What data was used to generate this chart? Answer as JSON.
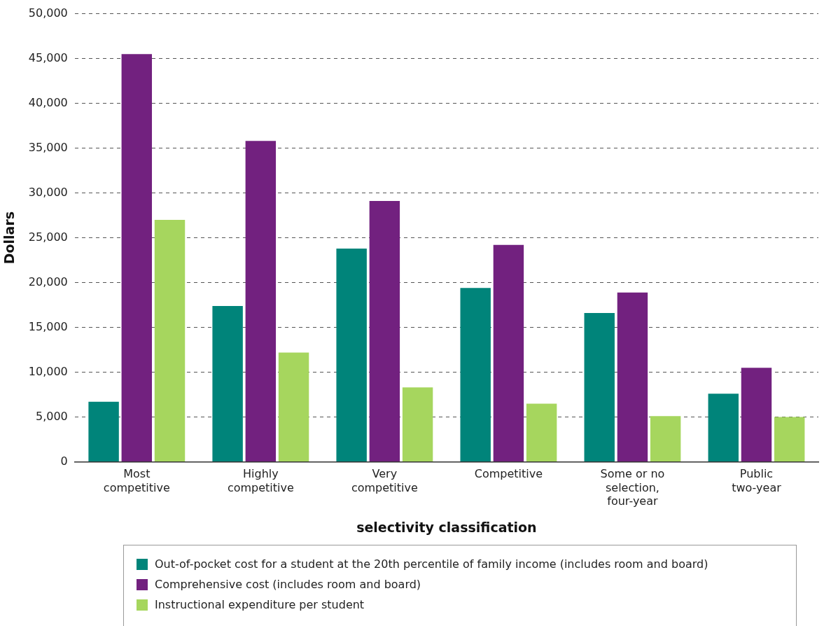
{
  "chart_data": {
    "type": "bar",
    "xlabel": "selectivity classification",
    "ylabel": "Dollars",
    "categories": [
      "Most competitive",
      "Highly competitive",
      "Very competitive",
      "Competitive",
      "Some or no selection, four-year",
      "Public two-year"
    ],
    "series": [
      {
        "name": "Out-of-pocket cost for a student at the 20th percentile of family income (includes room and board)",
        "color": "#00847a",
        "values": [
          6700,
          17400,
          23800,
          19400,
          16600,
          7600
        ]
      },
      {
        "name": "Comprehensive cost (includes room and board)",
        "color": "#72217f",
        "values": [
          45500,
          35800,
          29100,
          24200,
          18900,
          10500
        ]
      },
      {
        "name": "Instructional expenditure per student",
        "color": "#a6d65e",
        "values": [
          27000,
          12200,
          8300,
          6500,
          5100,
          5000
        ]
      }
    ],
    "ylim": [
      0,
      50000
    ],
    "yticks": [
      0,
      {
        "value": 5000,
        "label": "5,000"
      },
      {
        "value": 10000,
        "label": "10,000"
      },
      {
        "value": 15000,
        "label": "15,000"
      },
      {
        "value": 20000,
        "label": "20,000"
      },
      {
        "value": 25000,
        "label": "25,000"
      },
      {
        "value": 30000,
        "label": "30,000"
      },
      {
        "value": 35000,
        "label": "35,000"
      },
      {
        "value": 40000,
        "label": "40,000"
      },
      {
        "value": 45000,
        "label": "45,000"
      },
      {
        "value": 50000,
        "label": "50,000"
      }
    ],
    "grid": "y",
    "legend": "bottom"
  }
}
